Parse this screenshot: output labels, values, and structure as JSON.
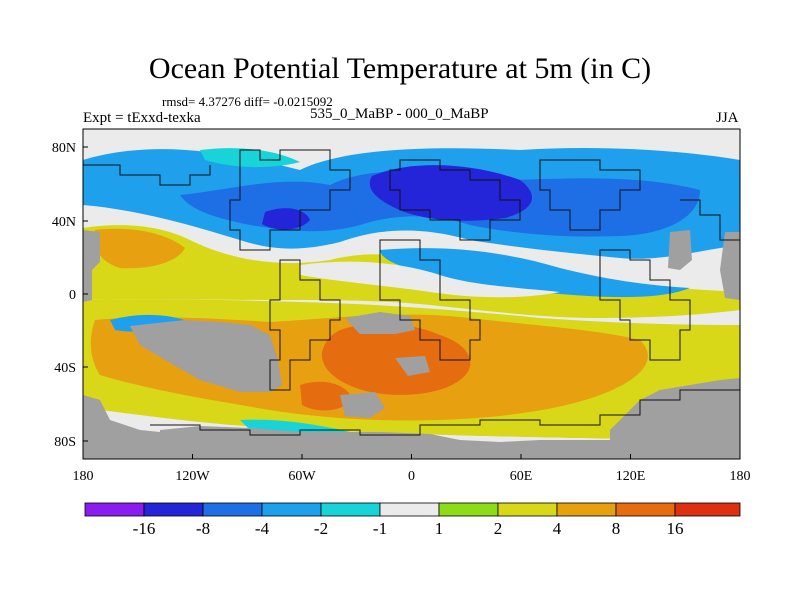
{
  "title": "Ocean Potential Temperature at 5m (in C)",
  "stats_line": "rmsd= 4.37276 diff= -0.0215092",
  "left_label": "Expt = tExxd-texka",
  "center_label": "535_0_MaBP - 000_0_MaBP",
  "right_label": "JJA",
  "map": {
    "projection": "cylindrical equidistant",
    "lon_range": [
      -180,
      180
    ],
    "lat_range": [
      -90,
      90
    ],
    "x_ticks": [
      "180",
      "120W",
      "60W",
      "0",
      "60E",
      "120E",
      "180"
    ],
    "y_ticks": [
      "80N",
      "40N",
      "0",
      "40S",
      "80S"
    ],
    "land_color": "#a0a0a0"
  },
  "colorbar": {
    "labels": [
      "-16",
      "-8",
      "-4",
      "-2",
      "-1",
      "1",
      "2",
      "4",
      "8",
      "16"
    ],
    "colors": [
      "#8a1cf0",
      "#2424d8",
      "#1e6ee6",
      "#1ea0ec",
      "#18d4d8",
      "#ebebeb",
      "#8edc18",
      "#d8d818",
      "#e6a010",
      "#e66c10",
      "#dc3010"
    ]
  }
}
